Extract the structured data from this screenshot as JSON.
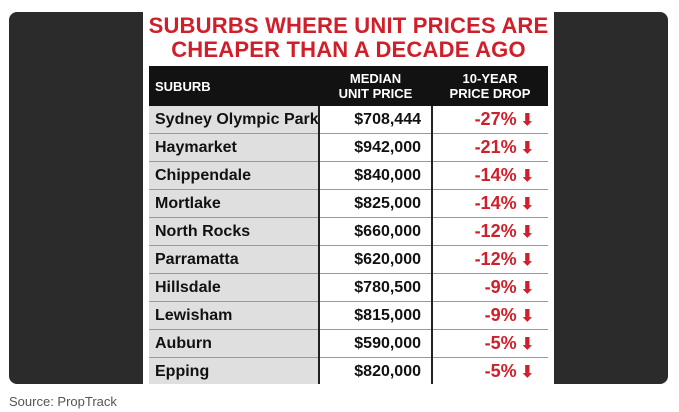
{
  "title": {
    "line1": "SUBURBS WHERE UNIT PRICES ARE",
    "line2": "CHEAPER THAN A DECADE AGO"
  },
  "table": {
    "headers": {
      "suburb": "SUBURB",
      "median_l1": "MEDIAN",
      "median_l2": "UNIT PRICE",
      "drop_l1": "10-YEAR",
      "drop_l2": "PRICE DROP"
    },
    "rows": [
      {
        "suburb": "Sydney Olympic Park",
        "price": "$708,444",
        "drop": "-27%"
      },
      {
        "suburb": "Haymarket",
        "price": "$942,000",
        "drop": "-21%"
      },
      {
        "suburb": "Chippendale",
        "price": "$840,000",
        "drop": "-14%"
      },
      {
        "suburb": "Mortlake",
        "price": "$825,000",
        "drop": "-14%"
      },
      {
        "suburb": "North Rocks",
        "price": "$660,000",
        "drop": "-12%"
      },
      {
        "suburb": "Parramatta",
        "price": "$620,000",
        "drop": "-12%"
      },
      {
        "suburb": "Hillsdale",
        "price": "$780,500",
        "drop": "-9%"
      },
      {
        "suburb": "Lewisham",
        "price": "$815,000",
        "drop": "-9%"
      },
      {
        "suburb": "Auburn",
        "price": "$590,000",
        "drop": "-5%"
      },
      {
        "suburb": "Epping",
        "price": "$820,000",
        "drop": "-5%"
      }
    ],
    "arrow_icon": "down-arrow-icon"
  },
  "source": "Source: PropTrack",
  "colors": {
    "accent_red": "#cf1f2a",
    "header_black": "#121212",
    "frame_dark": "#2b2b2b"
  }
}
